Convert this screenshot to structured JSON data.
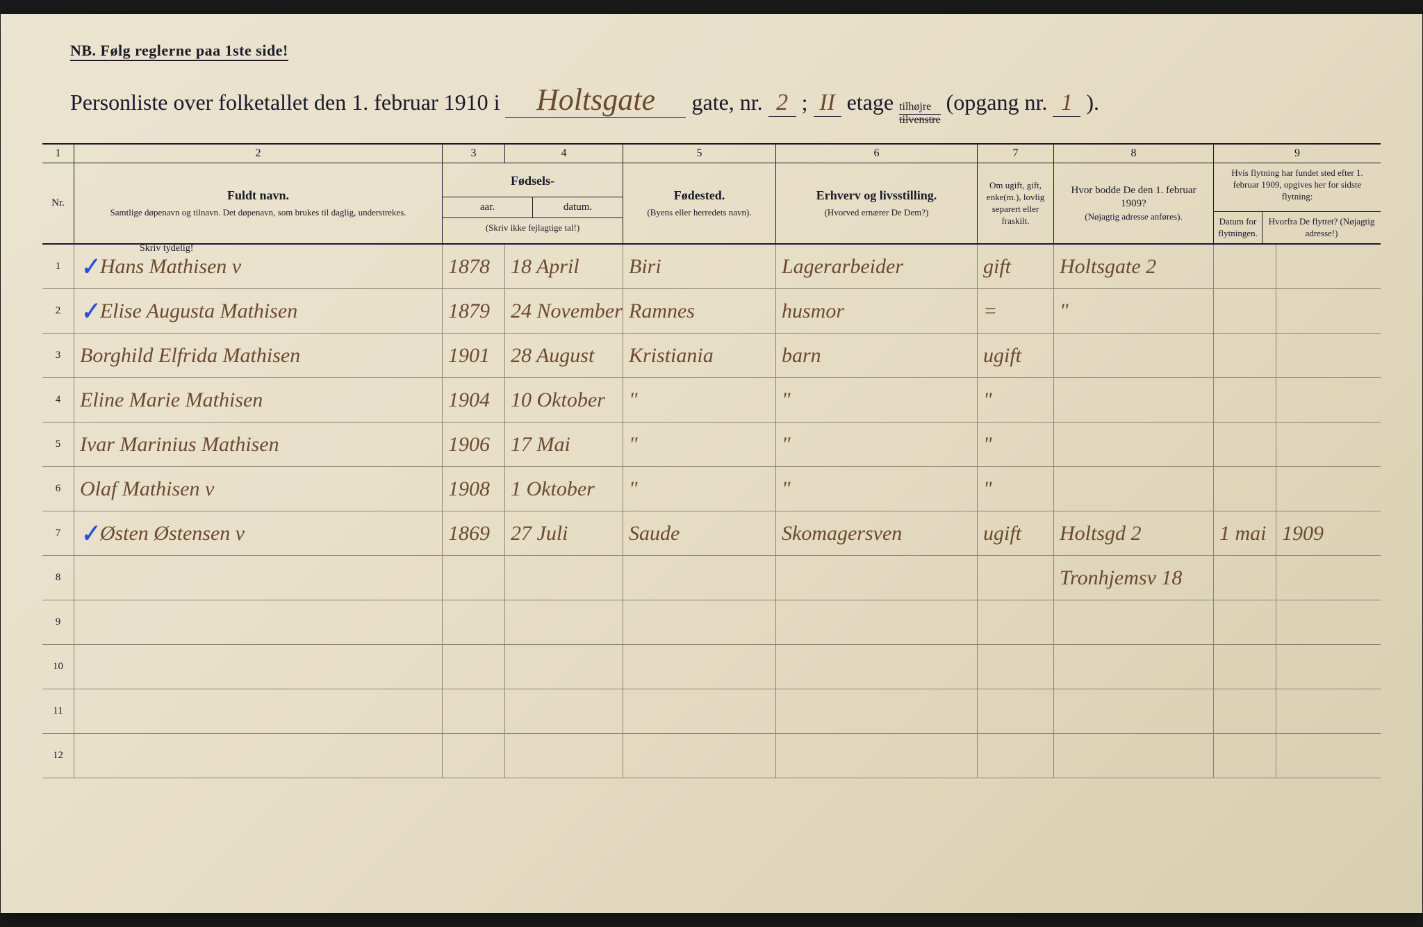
{
  "background_color": "#e8dfc8",
  "print_color": "#1a1a2a",
  "ink_color": "#6b4a2f",
  "blue_mark_color": "#2850d8",
  "rule_color": "#8a8576",
  "nb": "NB.  Følg reglerne paa 1ste side!",
  "title": {
    "prefix": "Personliste over folketallet den 1. februar 1910 i",
    "street_hw": "Holtsgate",
    "gate_label": "gate, nr.",
    "gate_nr_hw": "2",
    "semi": "; ",
    "etage_hw": "II",
    "etage_label": "etage",
    "tilhojre": "tilhøjre",
    "tilvenstre": "tilvenstre",
    "opgang_label": "(opgang nr.",
    "opgang_nr_hw": "1",
    "close": ")."
  },
  "colnums": [
    "1",
    "2",
    "3",
    "4",
    "5",
    "6",
    "7",
    "8",
    "9"
  ],
  "headers": {
    "nr": "Nr.",
    "name_main": "Fuldt navn.",
    "name_sub": "Samtlige døpenavn og tilnavn. Det døpenavn, som brukes til daglig, understrekes.",
    "fodsels": "Fødsels-",
    "aar": "aar.",
    "datum": "datum.",
    "fodsels_note": "(Skriv ikke fejlagtige tal!)",
    "birthplace_main": "Fødested.",
    "birthplace_sub": "(Byens eller herredets navn).",
    "occupation_main": "Erhverv og livsstilling.",
    "occupation_sub": "(Hvorved ernærer De Dem?)",
    "status": "Om ugift, gift, enke(m.), lovlig separert eller fraskilt.",
    "addr_main": "Hvor bodde De den 1. februar 1909?",
    "addr_sub": "(Nøjagtig adresse anføres).",
    "col9_top": "Hvis flytning har fundet sted efter 1. februar 1909, opgives her for sidste flytning:",
    "col9_date": "Datum for flytningen.",
    "col9_from": "Hvorfra De flyttet? (Nøjagtig adresse!)"
  },
  "skriv_tydelig": "Skriv tydelig!",
  "rows": [
    {
      "nr": "1",
      "mark": "✓",
      "name": "Hans  Mathisen   v",
      "year": "1878",
      "date": "18 April",
      "birthplace": "Biri",
      "occupation": "Lagerarbeider",
      "status": "gift",
      "addr": "Holtsgate 2",
      "moved_date": "",
      "moved_from": ""
    },
    {
      "nr": "2",
      "mark": "✓",
      "name": "Elise  Augusta Mathisen",
      "year": "1879",
      "date": "24 November",
      "birthplace": "Ramnes",
      "occupation": "husmor",
      "status": "=",
      "addr": "\"",
      "moved_date": "",
      "moved_from": ""
    },
    {
      "nr": "3",
      "mark": "",
      "name": "Borghild  Elfrida Mathisen",
      "year": "1901",
      "date": "28 August",
      "birthplace": "Kristiania",
      "occupation": "barn",
      "status": "ugift",
      "addr": "",
      "moved_date": "",
      "moved_from": ""
    },
    {
      "nr": "4",
      "mark": "",
      "name": "Eline Marie  Mathisen",
      "year": "1904",
      "date": "10 Oktober",
      "birthplace": "\"",
      "occupation": "\"",
      "status": "\"",
      "addr": "",
      "moved_date": "",
      "moved_from": ""
    },
    {
      "nr": "5",
      "mark": "",
      "name": "Ivar  Marinius  Mathisen",
      "year": "1906",
      "date": "17 Mai",
      "birthplace": "\"",
      "occupation": "\"",
      "status": "\"",
      "addr": "",
      "moved_date": "",
      "moved_from": ""
    },
    {
      "nr": "6",
      "mark": "",
      "name": "Olaf  Mathisen   v",
      "year": "1908",
      "date": "1 Oktober",
      "birthplace": "\"",
      "occupation": "\"",
      "status": "\"",
      "addr": "",
      "moved_date": "",
      "moved_from": ""
    },
    {
      "nr": "7",
      "mark": "✓",
      "name": "Østen   Østensen   v",
      "year": "1869",
      "date": "27 Juli",
      "birthplace": "Saude",
      "occupation": "Skomagersven",
      "status": "ugift",
      "addr": "Holtsgd 2",
      "moved_date": "1 mai",
      "moved_from": "1909"
    },
    {
      "nr": "8",
      "mark": "",
      "name": "",
      "year": "",
      "date": "",
      "birthplace": "",
      "occupation": "",
      "status": "",
      "addr": "Tronhjemsv 18",
      "moved_date": "",
      "moved_from": ""
    },
    {
      "nr": "9",
      "mark": "",
      "name": "",
      "year": "",
      "date": "",
      "birthplace": "",
      "occupation": "",
      "status": "",
      "addr": "",
      "moved_date": "",
      "moved_from": ""
    },
    {
      "nr": "10",
      "mark": "",
      "name": "",
      "year": "",
      "date": "",
      "birthplace": "",
      "occupation": "",
      "status": "",
      "addr": "",
      "moved_date": "",
      "moved_from": ""
    },
    {
      "nr": "11",
      "mark": "",
      "name": "",
      "year": "",
      "date": "",
      "birthplace": "",
      "occupation": "",
      "status": "",
      "addr": "",
      "moved_date": "",
      "moved_from": ""
    },
    {
      "nr": "12",
      "mark": "",
      "name": "",
      "year": "",
      "date": "",
      "birthplace": "",
      "occupation": "",
      "status": "",
      "addr": "",
      "moved_date": "",
      "moved_from": ""
    }
  ]
}
